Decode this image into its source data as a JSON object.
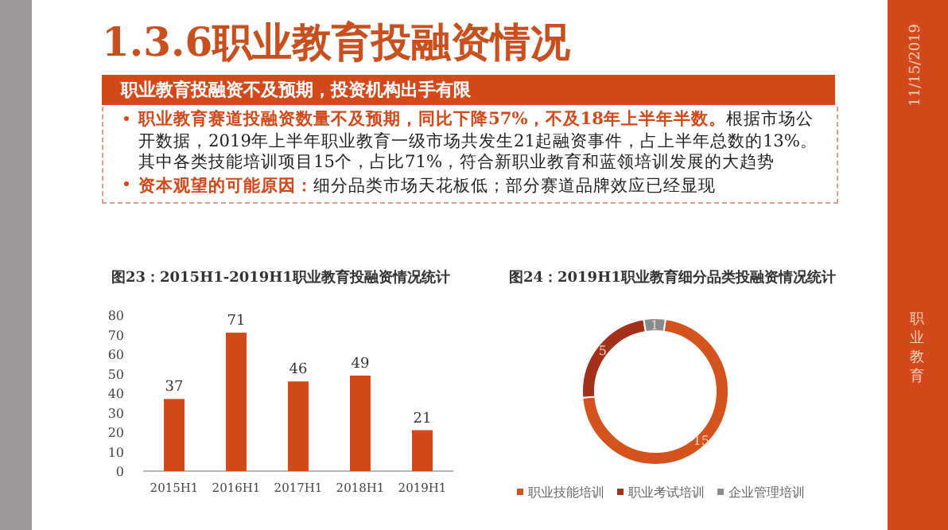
{
  "chart_data": [
    {
      "type": "other",
      "title": "1.3.6职业教育投融资情况",
      "subtitle": "职业教育投融资不及预期，投资机构出手有限",
      "annotations": [
        "职业教育赛道投融资数量不及预期，同比下降57%，不及18年上半年半数。",
        "根据市场公开数据，2019年上半年职业教育一级市场共发生21起融资事件，占上半年总数的13%。其中各类技能培训项目15个，占比71%，符合新职业教育和蓝领培训发展的大趋势",
        "资本观望的可能原因：",
        "细分品类市场天花板低；部分赛道品牌效应已经显现",
        "11/15/2019",
        "职业教育"
      ]
    },
    {
      "type": "bar",
      "title": "图23：2015H1-2019H1职业教育投融资情况统计",
      "categories": [
        "2015H1",
        "2016H1",
        "2017H1",
        "2018H1",
        "2019H1"
      ],
      "values": [
        37,
        71,
        46,
        49,
        21
      ],
      "color": "#d24a1c",
      "ylim": [
        0,
        80
      ],
      "yticks": [
        0,
        10,
        20,
        30,
        40,
        50,
        60,
        70,
        80
      ],
      "data_labels": true,
      "grid": false
    },
    {
      "type": "donut",
      "title": "图24：2019H1职业教育细分品类投融资情况统计",
      "categories": [
        "职业技能培训",
        "职业考试培训",
        "企业管理培训"
      ],
      "values": [
        15,
        5,
        1
      ],
      "colors": [
        "#d4521e",
        "#a3301b",
        "#8a8a8a"
      ],
      "data_labels": true,
      "legend": "bottom"
    }
  ]
}
